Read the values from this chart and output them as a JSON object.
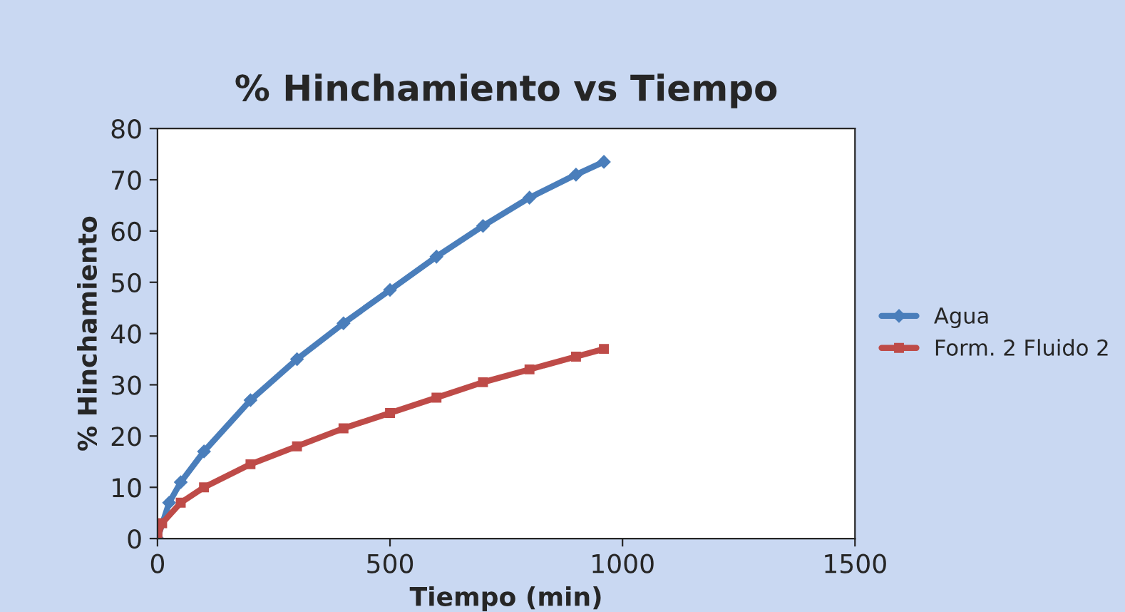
{
  "chart_data": {
    "type": "line",
    "title": "% Hinchamiento vs Tiempo",
    "xlabel": "Tiempo (min)",
    "ylabel": "% Hinchamiento",
    "xlim": [
      0,
      1500
    ],
    "xticks": [
      0,
      500,
      1000,
      1500
    ],
    "ylim": [
      0,
      80
    ],
    "yticks": [
      0,
      10,
      20,
      30,
      40,
      50,
      60,
      70,
      80
    ],
    "legend": "right",
    "series": [
      {
        "name": "Agua",
        "color": "#4a7ebb",
        "marker": "diamond",
        "x": [
          0,
          25,
          50,
          100,
          200,
          300,
          400,
          500,
          600,
          700,
          800,
          900,
          960
        ],
        "values": [
          0,
          7,
          11,
          17,
          27,
          35,
          42,
          48.5,
          55,
          61,
          66.5,
          71,
          73.5
        ]
      },
      {
        "name": "Form. 2 Fluido 2",
        "color": "#be4b48",
        "marker": "square",
        "x": [
          0,
          10,
          50,
          100,
          200,
          300,
          400,
          500,
          600,
          700,
          800,
          900,
          960
        ],
        "values": [
          0,
          3,
          7,
          10,
          14.5,
          18,
          21.5,
          24.5,
          27.5,
          30.5,
          33,
          35.5,
          37
        ]
      }
    ]
  }
}
